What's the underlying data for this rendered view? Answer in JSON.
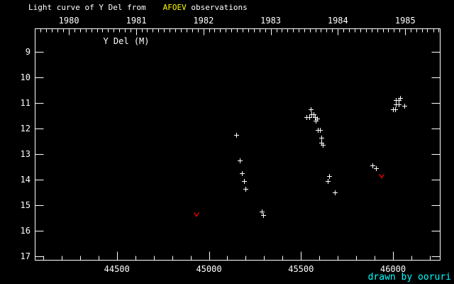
{
  "colors": {
    "background": "#000000",
    "foreground": "#ffffff",
    "accent_yellow": "#ffff00",
    "credit_cyan": "#00ffff",
    "limit_red": "#e00000"
  },
  "title": {
    "prefix": "Light curve of Y Del from",
    "accent": "AFOEV",
    "suffix": " observations"
  },
  "annotation": {
    "star_label": "Y Del (M)"
  },
  "credit": {
    "text": "drawn by ooruri"
  },
  "chart_data": {
    "type": "scatter",
    "title": "Light curve of Y Del from AFOEV observations",
    "xlabel": "",
    "ylabel": "",
    "grid": "off",
    "legend": "none",
    "x_axis": {
      "side": "bottom",
      "range": [
        44056,
        46256
      ],
      "tick_values": [
        44500,
        45000,
        45500,
        46000
      ],
      "tick_labels": [
        "44500",
        "45000",
        "45500",
        "46000"
      ],
      "minor_tick_step": 100
    },
    "top_axis": {
      "unit": "year",
      "tick_values": [
        44239.5,
        44605.5,
        44970.5,
        45335.5,
        45700.5,
        46066.5
      ],
      "tick_labels": [
        "1980",
        "1981",
        "1982",
        "1983",
        "1984",
        "1985"
      ],
      "minor_ticks": "month-boundaries"
    },
    "y_axis": {
      "unit": "magnitude",
      "range": [
        8.1,
        17.15
      ],
      "tick_values": [
        9,
        10,
        11,
        12,
        13,
        14,
        15,
        16,
        17
      ],
      "tick_labels": [
        "9",
        "10",
        "11",
        "12",
        "13",
        "14",
        "15",
        "16",
        "17"
      ],
      "minor_ticks": "none",
      "direction": "inverted-fainter-downward"
    },
    "series": [
      {
        "name": "observations",
        "marker": "plus",
        "color": "#ffffff",
        "points": [
          [
            45149,
            12.25
          ],
          [
            45168,
            13.25
          ],
          [
            45179,
            13.75
          ],
          [
            45189,
            14.05
          ],
          [
            45199,
            14.35
          ],
          [
            45287,
            15.25
          ],
          [
            45295,
            15.4
          ],
          [
            45531,
            11.55
          ],
          [
            45545,
            11.55
          ],
          [
            45554,
            11.25
          ],
          [
            45557,
            11.45
          ],
          [
            45570,
            11.45
          ],
          [
            45577,
            11.55
          ],
          [
            45580,
            11.7
          ],
          [
            45586,
            11.6
          ],
          [
            45592,
            12.05
          ],
          [
            45603,
            12.05
          ],
          [
            45609,
            12.55
          ],
          [
            45612,
            12.35
          ],
          [
            45618,
            12.65
          ],
          [
            45645,
            14.05
          ],
          [
            45654,
            13.85
          ],
          [
            45682,
            14.5
          ],
          [
            45887,
            13.45
          ],
          [
            45909,
            13.55
          ],
          [
            46000,
            11.25
          ],
          [
            46010,
            11.25
          ],
          [
            46014,
            10.9
          ],
          [
            46016,
            11.05
          ],
          [
            46029,
            10.9
          ],
          [
            46030,
            11.05
          ],
          [
            46039,
            10.8
          ],
          [
            46061,
            11.1
          ]
        ]
      },
      {
        "name": "fainter-than-limits",
        "marker": "v",
        "color": "#e00000",
        "points": [
          [
            44933,
            15.35
          ],
          [
            45940,
            13.85
          ]
        ]
      }
    ]
  }
}
